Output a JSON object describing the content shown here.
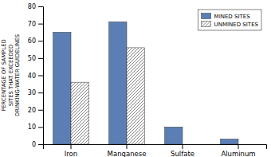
{
  "chart_data": {
    "type": "bar",
    "ylabel": "PERCENTAGE OF SAMPLED\nSITES THAT EXCEEDED\nDRINKING-WATER GUIDELINES",
    "categories": [
      "Iron",
      "Manganese",
      "Sulfate",
      "Aluminum"
    ],
    "series": [
      {
        "name": "MINED SITES",
        "color": "#5b7fb5",
        "values": [
          65,
          71,
          10,
          3
        ]
      },
      {
        "name": "UNMINED SITES",
        "color": "#ffffff",
        "values": [
          36,
          56,
          0,
          0
        ]
      }
    ],
    "ylim": [
      0,
      80
    ],
    "yticks": [
      0,
      10,
      20,
      30,
      40,
      50,
      60,
      70,
      80
    ],
    "grid": false,
    "legend": "upper right"
  }
}
